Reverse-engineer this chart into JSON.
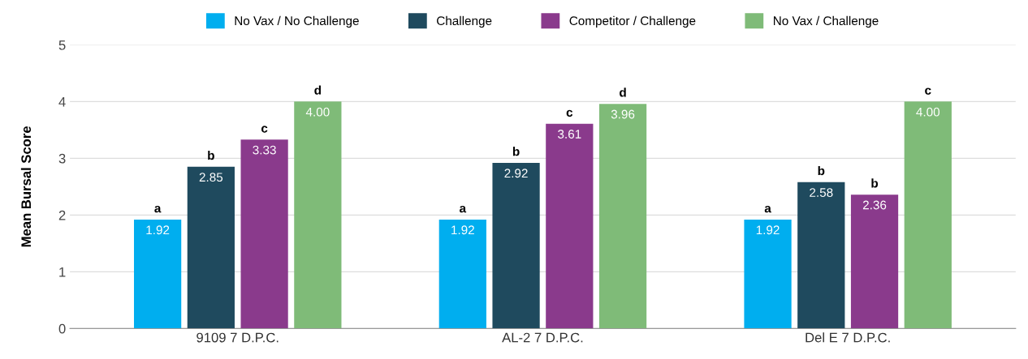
{
  "chart_data": {
    "type": "bar",
    "ylabel": "Mean Bursal Score",
    "categories": [
      "9109 7 D.P.C.",
      "AL-2 7 D.P.C.",
      "Del E 7 D.P.C."
    ],
    "series": [
      {
        "name": "No Vax / No Challenge",
        "color": "#00aeef",
        "values": [
          1.92,
          1.92,
          1.92
        ],
        "value_labels": [
          "1.92",
          "1.92",
          "1.92"
        ]
      },
      {
        "name": "Challenge",
        "color": "#1f4a5e",
        "values": [
          2.85,
          2.92,
          2.58
        ],
        "value_labels": [
          "2.85",
          "2.92",
          "2.58"
        ]
      },
      {
        "name": "Competitor / Challenge",
        "color": "#8a3a8c",
        "values": [
          3.33,
          3.61,
          2.36
        ],
        "value_labels": [
          "3.33",
          "3.61",
          "2.36"
        ]
      },
      {
        "name": "No Vax / Challenge",
        "color": "#7fbb78",
        "values": [
          4.0,
          3.96,
          4.0
        ],
        "value_labels": [
          "4.00",
          "3.96",
          "4.00"
        ]
      }
    ],
    "ylim": [
      0,
      5
    ],
    "yticks": [
      0,
      1,
      2,
      3,
      4,
      5
    ],
    "grid": "y",
    "legend": "top",
    "annotations": [
      "a",
      "b",
      "c",
      "d",
      "a",
      "b",
      "c",
      "d",
      "a",
      "b",
      "b",
      "c"
    ]
  }
}
